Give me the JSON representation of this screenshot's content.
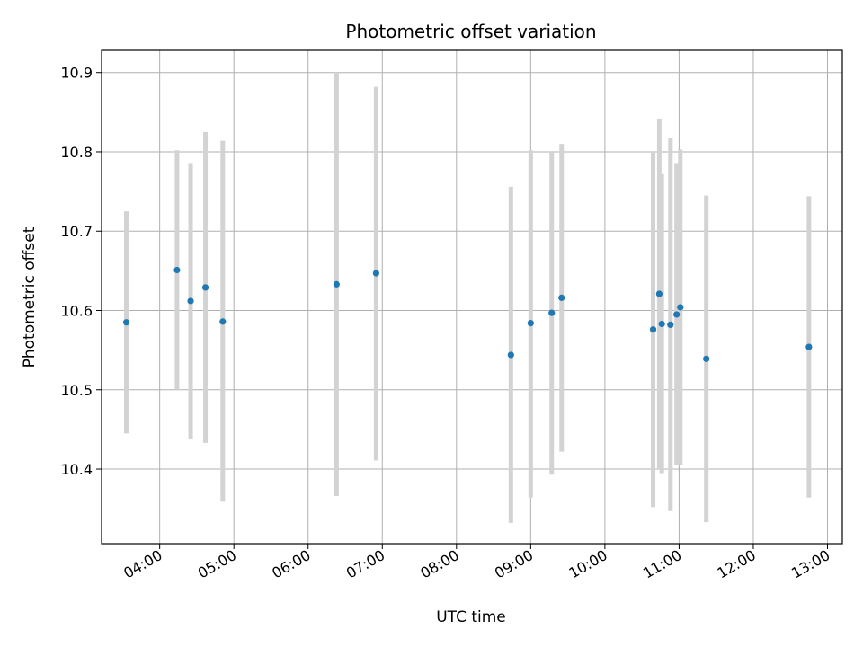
{
  "chart_data": {
    "type": "scatter",
    "title": "Photometric offset variation",
    "xlabel": "UTC time",
    "ylabel": "Photometric offset",
    "xlim": [
      "03:13",
      "13:12"
    ],
    "ylim": [
      10.306,
      10.928
    ],
    "grid": true,
    "x_ticks": [
      "04:00",
      "05:00",
      "06:00",
      "07:00",
      "08:00",
      "09:00",
      "10:00",
      "11:00",
      "12:00",
      "13:00"
    ],
    "y_ticks": [
      "10.4",
      "10.5",
      "10.6",
      "10.7",
      "10.8",
      "10.9"
    ],
    "marker_color": "#1f77b4",
    "errorbar_color": "#d3d3d3",
    "points": [
      {
        "time": "03:33",
        "value": 10.585,
        "low": 10.445,
        "high": 10.725
      },
      {
        "time": "04:14",
        "value": 10.651,
        "low": 10.5,
        "high": 10.802
      },
      {
        "time": "04:25",
        "value": 10.612,
        "low": 10.438,
        "high": 10.786
      },
      {
        "time": "04:37",
        "value": 10.629,
        "low": 10.433,
        "high": 10.825
      },
      {
        "time": "04:51",
        "value": 10.586,
        "low": 10.359,
        "high": 10.814
      },
      {
        "time": "06:23",
        "value": 10.633,
        "low": 10.366,
        "high": 10.9
      },
      {
        "time": "06:55",
        "value": 10.647,
        "low": 10.411,
        "high": 10.882
      },
      {
        "time": "08:44",
        "value": 10.544,
        "low": 10.332,
        "high": 10.756
      },
      {
        "time": "09:00",
        "value": 10.584,
        "low": 10.364,
        "high": 10.802
      },
      {
        "time": "09:17",
        "value": 10.597,
        "low": 10.393,
        "high": 10.801
      },
      {
        "time": "09:25",
        "value": 10.616,
        "low": 10.422,
        "high": 10.81
      },
      {
        "time": "10:39",
        "value": 10.576,
        "low": 10.352,
        "high": 10.8
      },
      {
        "time": "10:44",
        "value": 10.621,
        "low": 10.4,
        "high": 10.842
      },
      {
        "time": "10:46",
        "value": 10.583,
        "low": 10.395,
        "high": 10.772
      },
      {
        "time": "10:53",
        "value": 10.582,
        "low": 10.347,
        "high": 10.817
      },
      {
        "time": "10:58",
        "value": 10.595,
        "low": 10.405,
        "high": 10.786
      },
      {
        "time": "11:01",
        "value": 10.604,
        "low": 10.405,
        "high": 10.803
      },
      {
        "time": "11:22",
        "value": 10.539,
        "low": 10.333,
        "high": 10.745
      },
      {
        "time": "12:45",
        "value": 10.554,
        "low": 10.364,
        "high": 10.744
      }
    ]
  }
}
